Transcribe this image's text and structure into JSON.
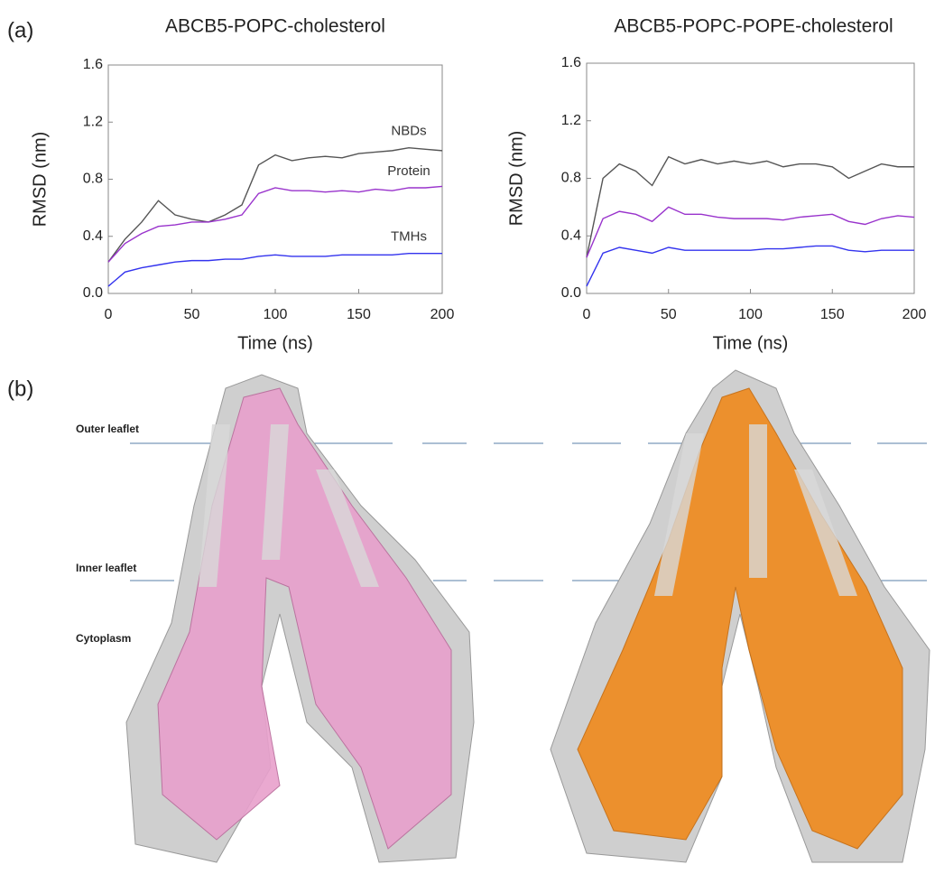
{
  "panel_labels": [
    "(a)",
    "(b)"
  ],
  "structure_labels": [
    "Outer leaflet",
    "Inner leaflet",
    "Cytoplasm"
  ],
  "chart_data": [
    {
      "type": "line",
      "title": "ABCB5-POPC-cholesterol",
      "x_label": "Time (ns)",
      "y_label": "RMSD (nm)",
      "x": [
        0,
        10,
        20,
        30,
        40,
        50,
        60,
        70,
        80,
        90,
        100,
        110,
        120,
        130,
        140,
        150,
        160,
        170,
        180,
        190,
        200
      ],
      "series": [
        {
          "name": "NBDs",
          "color": "#555555",
          "values": [
            0.22,
            0.38,
            0.5,
            0.65,
            0.55,
            0.52,
            0.5,
            0.55,
            0.62,
            0.9,
            0.97,
            0.93,
            0.95,
            0.96,
            0.95,
            0.98,
            0.99,
            1.0,
            1.02,
            1.01,
            1.0
          ]
        },
        {
          "name": "Protein",
          "color": "#9933cc",
          "values": [
            0.22,
            0.35,
            0.42,
            0.47,
            0.48,
            0.5,
            0.5,
            0.52,
            0.55,
            0.7,
            0.74,
            0.72,
            0.72,
            0.71,
            0.72,
            0.71,
            0.73,
            0.72,
            0.74,
            0.74,
            0.75
          ]
        },
        {
          "name": "TMHs",
          "color": "#3333ee",
          "values": [
            0.05,
            0.15,
            0.18,
            0.2,
            0.22,
            0.23,
            0.23,
            0.24,
            0.24,
            0.26,
            0.27,
            0.26,
            0.26,
            0.26,
            0.27,
            0.27,
            0.27,
            0.27,
            0.28,
            0.28,
            0.28
          ]
        }
      ],
      "xlim": [
        0,
        200
      ],
      "xticks": [
        0,
        50,
        100,
        150,
        200
      ],
      "ylim": [
        0,
        1.6
      ],
      "yticks": [
        {
          "value": 0,
          "label": "0.0"
        },
        0.4,
        0.8,
        1.2,
        1.6
      ]
    },
    {
      "type": "line",
      "title": "ABCB5-POPC-POPE-cholesterol",
      "x_label": "Time (ns)",
      "y_label": "RMSD (nm)",
      "x": [
        0,
        10,
        20,
        30,
        40,
        50,
        60,
        70,
        80,
        90,
        100,
        110,
        120,
        130,
        140,
        150,
        160,
        170,
        180,
        190,
        200
      ],
      "series": [
        {
          "color": "#555555",
          "values": [
            0.25,
            0.8,
            0.9,
            0.85,
            0.75,
            0.95,
            0.9,
            0.93,
            0.9,
            0.92,
            0.9,
            0.92,
            0.88,
            0.9,
            0.9,
            0.88,
            0.8,
            0.85,
            0.9,
            0.88,
            0.88
          ]
        },
        {
          "color": "#9933cc",
          "values": [
            0.25,
            0.52,
            0.57,
            0.55,
            0.5,
            0.6,
            0.55,
            0.55,
            0.53,
            0.52,
            0.52,
            0.52,
            0.51,
            0.53,
            0.54,
            0.55,
            0.5,
            0.48,
            0.52,
            0.54,
            0.53
          ]
        },
        {
          "color": "#3333ee",
          "values": [
            0.05,
            0.28,
            0.32,
            0.3,
            0.28,
            0.32,
            0.3,
            0.3,
            0.3,
            0.3,
            0.3,
            0.31,
            0.31,
            0.32,
            0.33,
            0.33,
            0.3,
            0.29,
            0.3,
            0.3,
            0.3
          ]
        }
      ],
      "xlim": [
        0,
        200
      ],
      "xticks": [
        0,
        50,
        100,
        150,
        200
      ],
      "ylim": [
        0,
        1.6
      ],
      "yticks": [
        {
          "value": 0,
          "label": "0.0"
        },
        0.4,
        0.8,
        1.2,
        1.6
      ]
    }
  ]
}
